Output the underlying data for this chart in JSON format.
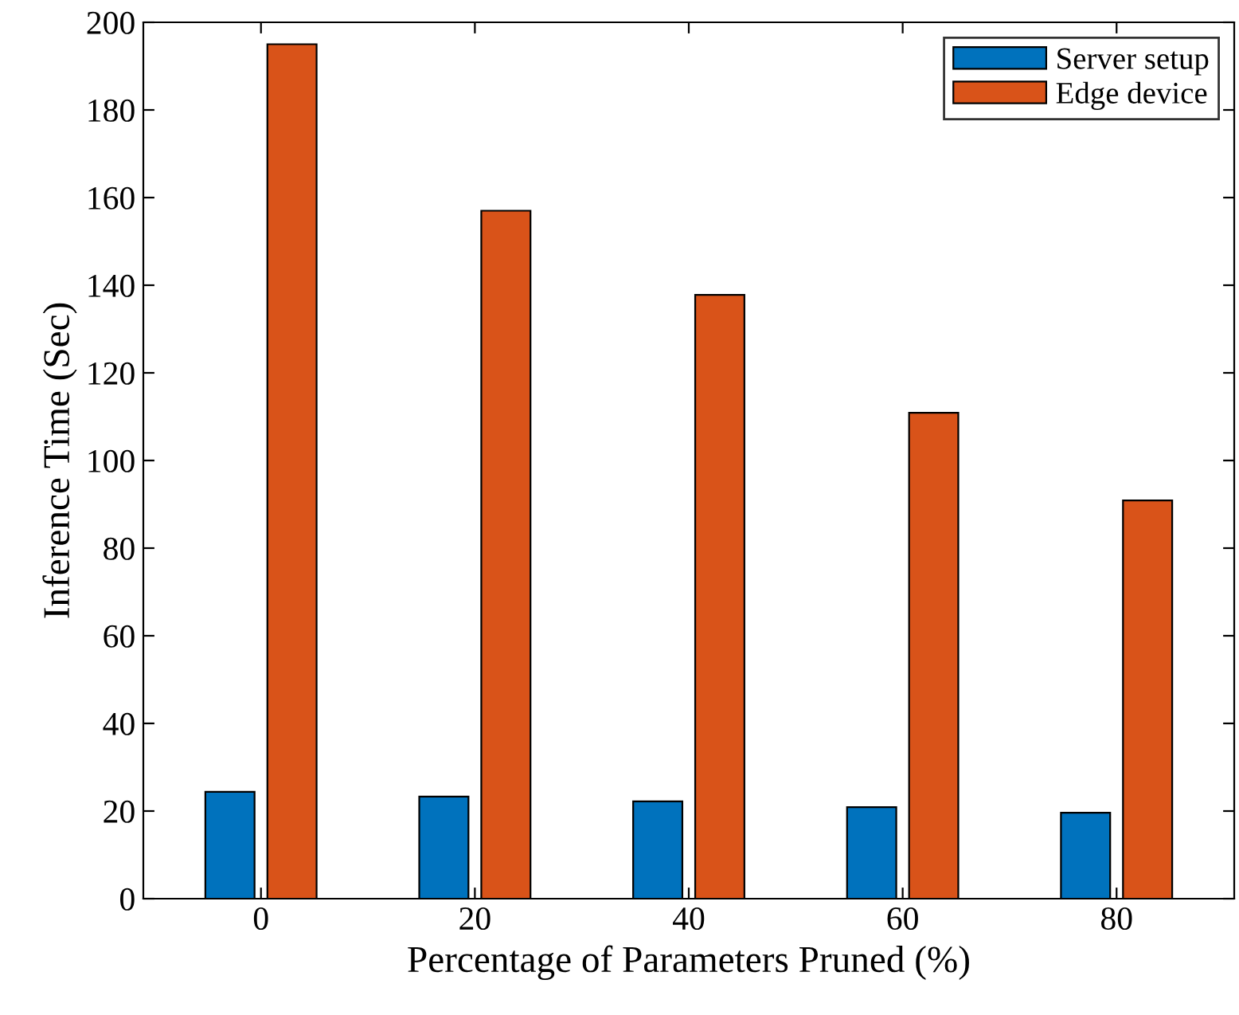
{
  "chart_data": {
    "type": "bar",
    "xlabel": "Percentage of Parameters Pruned (%)",
    "ylabel": "Inference Time (Sec)",
    "categories": [
      "0",
      "20",
      "40",
      "60",
      "80"
    ],
    "series": [
      {
        "name": "Server setup",
        "color": "#0072bd",
        "values": [
          24.4,
          23.3,
          22.2,
          20.9,
          19.6
        ]
      },
      {
        "name": "Edge device",
        "color": "#d95319",
        "values": [
          195,
          157,
          137.8,
          110.9,
          90.9
        ]
      }
    ],
    "ylim": [
      0,
      200
    ],
    "yticks": [
      0,
      20,
      40,
      60,
      80,
      100,
      120,
      140,
      160,
      180,
      200
    ],
    "grid": false,
    "legend": "top right"
  }
}
